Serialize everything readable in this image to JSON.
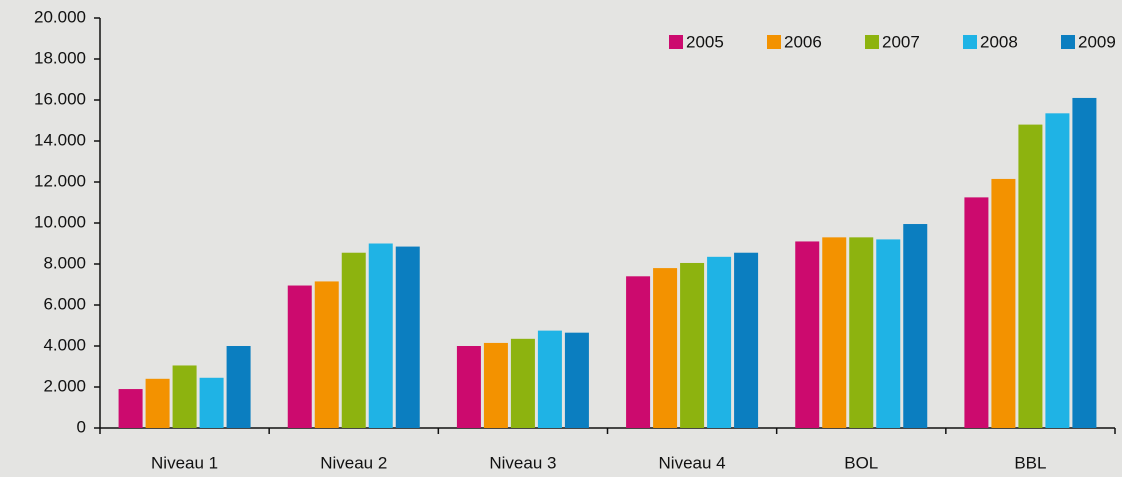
{
  "chart_data": {
    "type": "bar",
    "categories": [
      "Niveau 1",
      "Niveau 2",
      "Niveau 3",
      "Niveau 4",
      "BOL",
      "BBL"
    ],
    "series": [
      {
        "name": "2005",
        "color": "#cc0a6e",
        "values": [
          1900,
          6950,
          4000,
          7400,
          9100,
          11250
        ]
      },
      {
        "name": "2006",
        "color": "#f39200",
        "values": [
          2400,
          7150,
          4150,
          7800,
          9300,
          12150
        ]
      },
      {
        "name": "2007",
        "color": "#8db30f",
        "values": [
          3050,
          8550,
          4350,
          8050,
          9300,
          14800
        ]
      },
      {
        "name": "2008",
        "color": "#1fb3e5",
        "values": [
          2450,
          9000,
          4750,
          8350,
          9200,
          15350
        ]
      },
      {
        "name": "2009",
        "color": "#0b7ec0",
        "values": [
          4000,
          8850,
          4650,
          8550,
          9950,
          16100
        ]
      }
    ],
    "ylim": [
      0,
      20000
    ],
    "yticks": [
      0,
      {
        "value": 2000,
        "label": "2.000"
      },
      {
        "value": 4000,
        "label": "4.000"
      },
      {
        "value": 6000,
        "label": "6.000"
      },
      {
        "value": 8000,
        "label": "8.000"
      },
      {
        "value": 10000,
        "label": "10.000"
      },
      {
        "value": 12000,
        "label": "12.000"
      },
      {
        "value": 14000,
        "label": "14.000"
      },
      {
        "value": 16000,
        "label": "16.000"
      },
      {
        "value": 18000,
        "label": "18.000"
      },
      {
        "value": 20000,
        "label": "20.000"
      }
    ],
    "legend": "upper right"
  }
}
